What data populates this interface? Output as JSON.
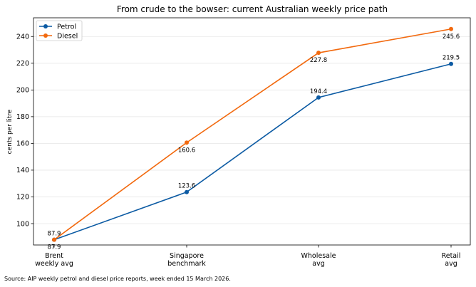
{
  "chart_data": {
    "type": "line",
    "title": "From crude to the bowser: current Australian weekly price path",
    "xlabel": "",
    "ylabel": "cents per litre",
    "categories": [
      [
        "Brent",
        "weekly avg"
      ],
      [
        "Singapore",
        "benchmark"
      ],
      [
        "Wholesale",
        "avg"
      ],
      [
        "Retail",
        "avg"
      ]
    ],
    "series": [
      {
        "name": "Petrol",
        "color": "#0b5aa3",
        "values": [
          87.9,
          123.6,
          194.4,
          219.5
        ]
      },
      {
        "name": "Diesel",
        "color": "#f2690e",
        "values": [
          87.9,
          160.6,
          227.8,
          245.6
        ]
      }
    ],
    "ylim": [
      84,
      254
    ],
    "yticks": [
      100,
      120,
      140,
      160,
      180,
      200,
      220,
      240
    ],
    "grid": "horizontal",
    "legend": "top-left"
  },
  "source": "Source: AIP weekly petrol and diesel price reports, week ended 15 March 2026."
}
